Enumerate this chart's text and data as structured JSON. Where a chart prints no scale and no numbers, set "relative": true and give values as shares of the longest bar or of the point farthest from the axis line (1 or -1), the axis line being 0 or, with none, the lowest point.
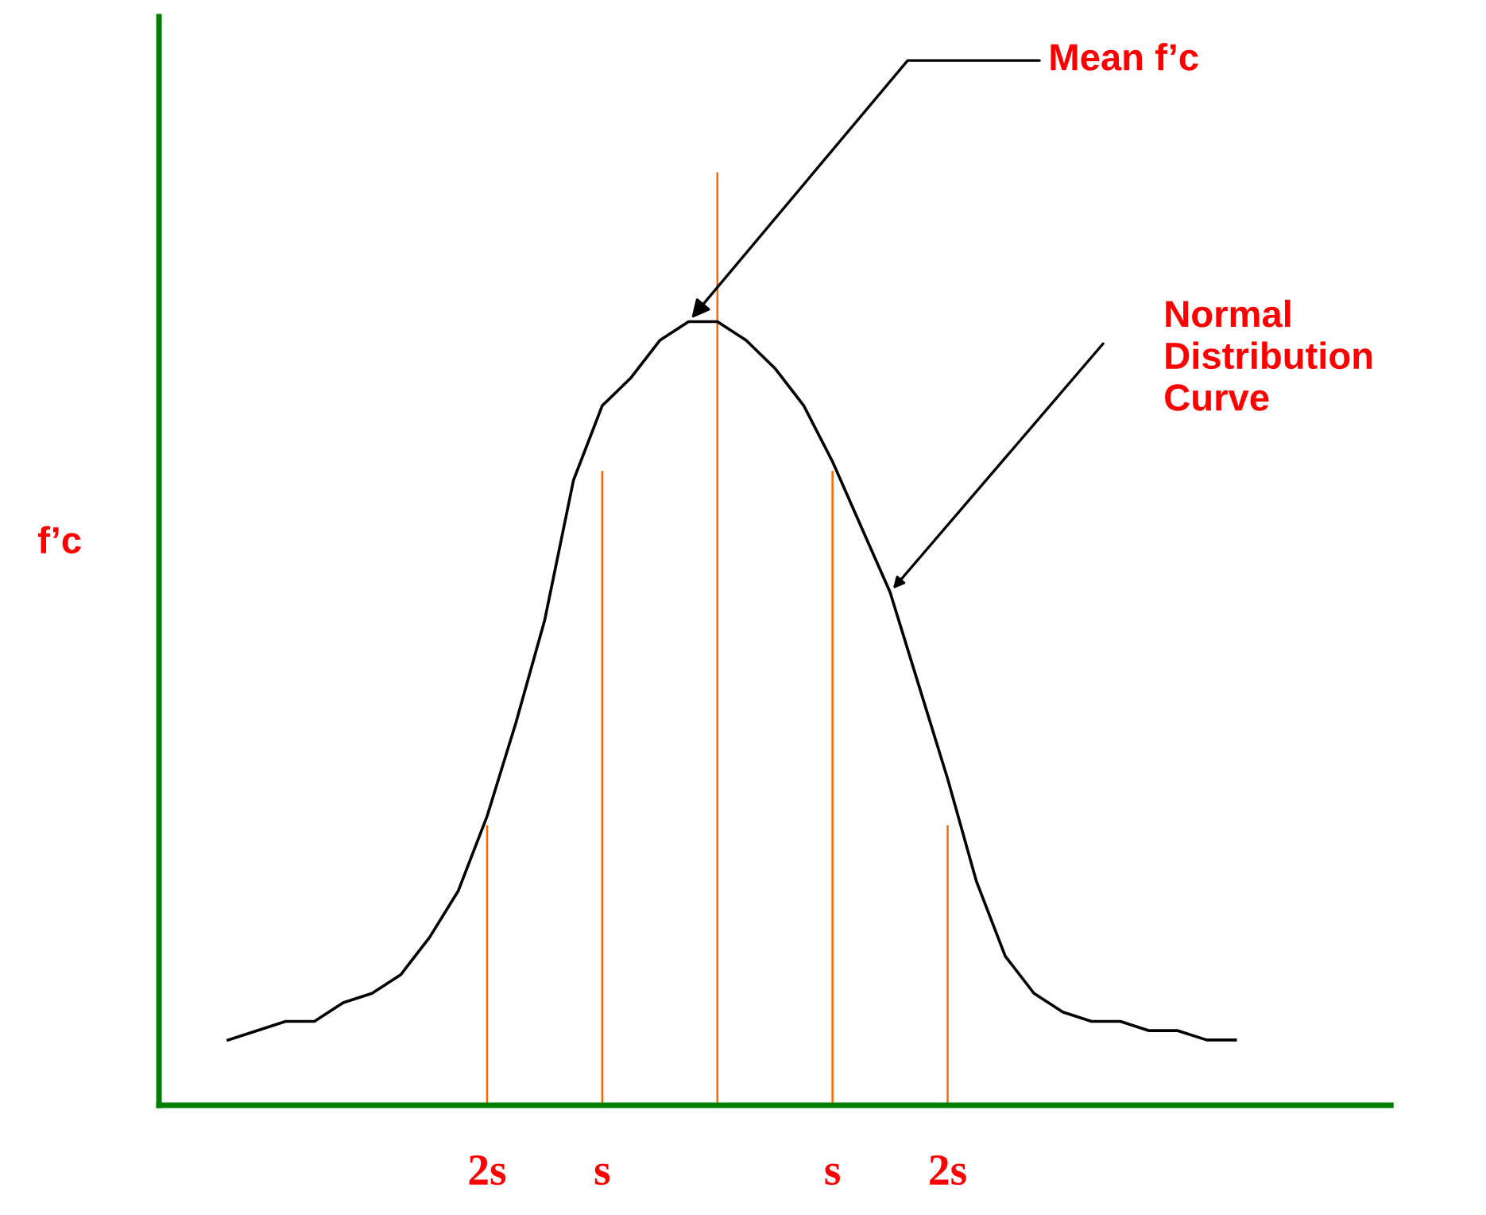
{
  "chart_data": {
    "type": "line",
    "relative": true,
    "ylabel": "f’c",
    "categories": [
      null,
      null,
      null,
      null,
      null,
      null,
      null,
      null,
      null,
      "2s",
      null,
      null,
      null,
      "s",
      null,
      null,
      null,
      null,
      null,
      null,
      null,
      "s",
      null,
      null,
      null,
      "2s",
      null,
      null,
      null,
      null,
      null,
      null,
      null,
      null,
      null,
      null
    ],
    "series": [
      {
        "color": "#000000",
        "values": [
          0.07,
          0.08,
          0.09,
          0.09,
          0.11,
          0.12,
          0.14,
          0.18,
          0.23,
          0.31,
          0.41,
          0.52,
          0.67,
          0.75,
          0.78,
          0.82,
          0.84,
          0.84,
          0.82,
          0.79,
          0.75,
          0.69,
          0.62,
          0.55,
          0.45,
          0.35,
          0.24,
          0.16,
          0.12,
          0.1,
          0.09,
          0.09,
          0.08,
          0.08,
          0.07,
          0.07
        ]
      },
      {
        "type": "bar",
        "color": "#ff6600",
        "values": [
          null,
          null,
          null,
          null,
          null,
          null,
          null,
          null,
          null,
          0.3,
          null,
          null,
          null,
          0.68,
          null,
          null,
          null,
          1,
          null,
          null,
          null,
          0.68,
          null,
          null,
          null,
          0.3,
          null,
          null,
          null,
          null,
          null,
          null,
          null,
          null,
          null,
          null
        ]
      }
    ],
    "annotations": [
      "Mean f’c",
      "Normal Distribution Curve"
    ],
    "tick_labels": "x",
    "legend": false,
    "grid": false,
    "marker": "none",
    "line_style": "solid"
  }
}
